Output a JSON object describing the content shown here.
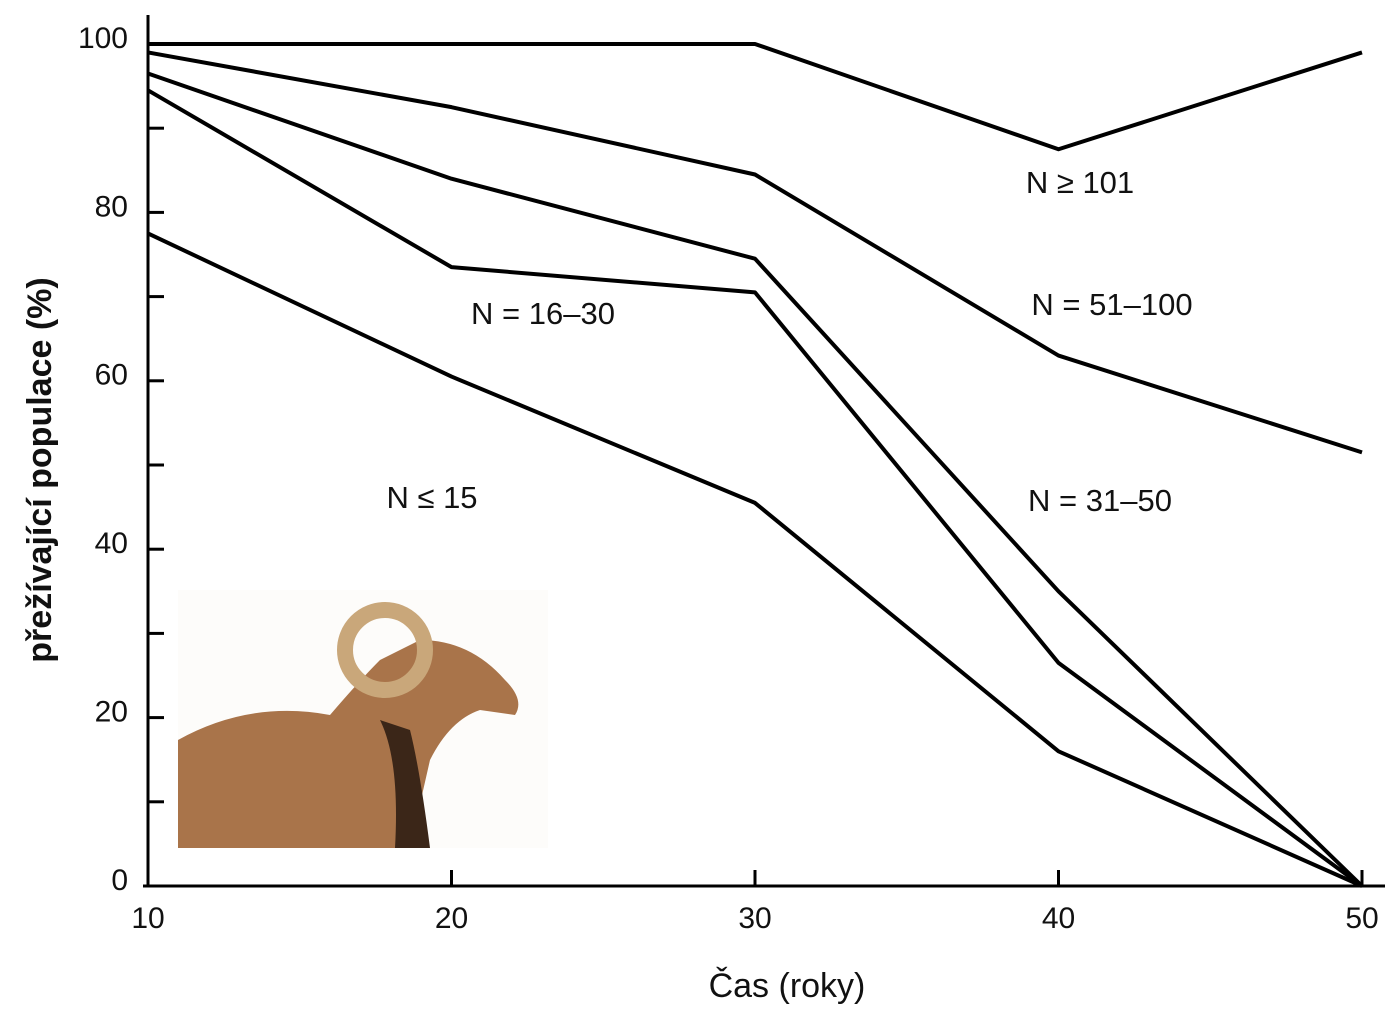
{
  "chart_data": {
    "type": "line",
    "x_label": "Čas (roky)",
    "y_label": "přežívající populace (%)",
    "x": [
      10,
      20,
      30,
      40,
      50
    ],
    "series": [
      {
        "name": "N ≥ 101",
        "color": "#000000",
        "values": [
          100,
          100,
          100,
          87.5,
          99
        ]
      },
      {
        "name": "N = 51–100",
        "color": "#000000",
        "values": [
          99,
          92.5,
          84.5,
          63,
          51.5
        ]
      },
      {
        "name": "N = 31–50",
        "color": "#000000",
        "values": [
          96.5,
          84,
          74.5,
          35,
          0
        ]
      },
      {
        "name": "N = 16–30",
        "color": "#000000",
        "values": [
          94.5,
          73.5,
          70.5,
          26.5,
          0
        ]
      },
      {
        "name": "N ≤ 15",
        "color": "#000000",
        "values": [
          77.5,
          60.5,
          45.5,
          16,
          0
        ]
      }
    ],
    "xlim": [
      10,
      50
    ],
    "ylim": [
      0,
      100
    ],
    "xticks": [
      10,
      20,
      30,
      40,
      50
    ],
    "yticks": [
      0,
      20,
      40,
      60,
      80,
      100
    ],
    "yminor_ticks": [
      10,
      30,
      50,
      70,
      90
    ]
  }
}
